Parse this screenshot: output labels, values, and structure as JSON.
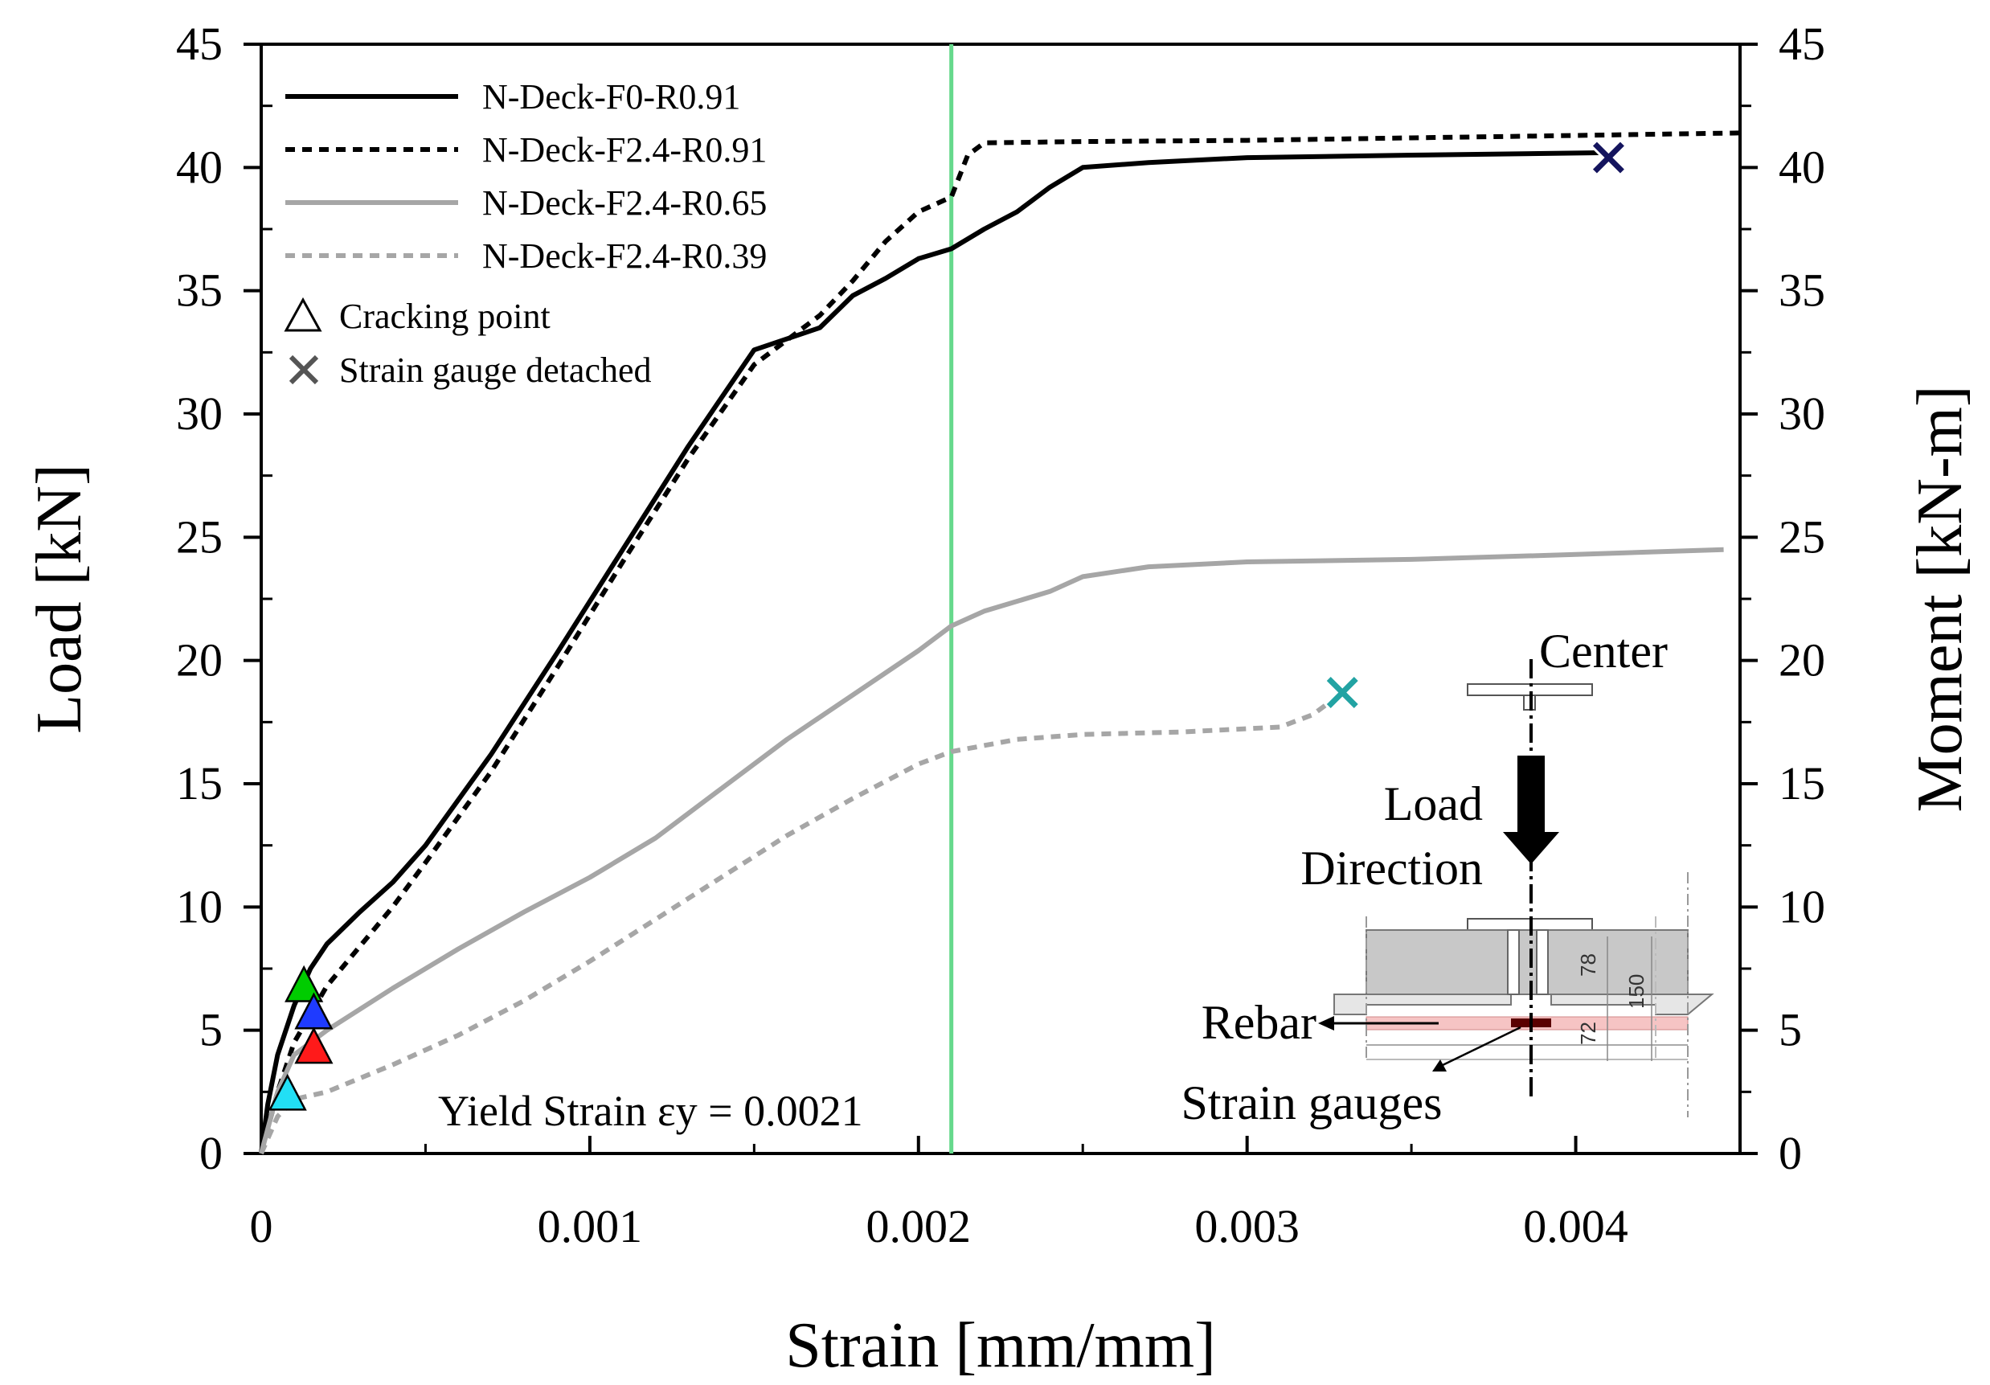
{
  "chart_data": {
    "type": "line",
    "xlabel": "Strain [mm/mm]",
    "ylabel": "Load [kN]",
    "y2label": "Moment [kN-m]",
    "xlim": [
      0,
      0.0045
    ],
    "ylim": [
      0,
      45
    ],
    "xticks": [
      0,
      0.001,
      0.002,
      0.003,
      0.004
    ],
    "xtick_labels": [
      "0",
      "0.001",
      "0.002",
      "0.003",
      "0.004"
    ],
    "yticks": [
      0,
      5,
      10,
      15,
      20,
      25,
      30,
      35,
      40,
      45
    ],
    "ytick_labels": [
      "0",
      "5",
      "10",
      "15",
      "20",
      "25",
      "30",
      "35",
      "40",
      "45"
    ],
    "y2tick_labels": [
      "0",
      "5",
      "10",
      "15",
      "20",
      "25",
      "30",
      "35",
      "40",
      "45"
    ],
    "grid": false,
    "legend_position": "top-left",
    "series": [
      {
        "name": "N-Deck-F0-R0.91",
        "color": "#000000",
        "dash": "solid",
        "x": [
          0,
          2e-05,
          5e-05,
          0.0001,
          0.00015,
          0.0002,
          0.0003,
          0.0004,
          0.0005,
          0.0007,
          0.0009,
          0.0011,
          0.0013,
          0.0015,
          0.0017,
          0.0018,
          0.0019,
          0.002,
          0.0021,
          0.0022,
          0.0023,
          0.0024,
          0.0025,
          0.0027,
          0.003,
          0.0035,
          0.0041
        ],
        "y": [
          0,
          2,
          4,
          6,
          7.5,
          8.5,
          9.8,
          11,
          12.5,
          16.2,
          20.3,
          24.5,
          28.7,
          32.6,
          33.5,
          34.8,
          35.5,
          36.3,
          36.7,
          37.5,
          38.2,
          39.2,
          40,
          40.2,
          40.4,
          40.5,
          40.6
        ]
      },
      {
        "name": "N-Deck-F2.4-R0.91",
        "color": "#000000",
        "dash": "dotted",
        "x": [
          0,
          5e-05,
          0.0001,
          0.0002,
          0.0003,
          0.0004,
          0.0005,
          0.0007,
          0.0009,
          0.0011,
          0.0013,
          0.0015,
          0.0017,
          0.0018,
          0.0019,
          0.002,
          0.0021,
          0.00215,
          0.0022,
          0.0025,
          0.003,
          0.0035,
          0.004,
          0.0045
        ],
        "y": [
          0,
          2.5,
          4.5,
          6.8,
          8.4,
          10,
          11.8,
          15.5,
          19.7,
          24,
          28.2,
          32,
          34,
          35.4,
          37,
          38.2,
          38.8,
          40.5,
          41,
          41.05,
          41.1,
          41.2,
          41.3,
          41.4
        ]
      },
      {
        "name": "N-Deck-F2.4-R0.65",
        "color": "#a6a6a6",
        "dash": "solid",
        "x": [
          0,
          5e-05,
          0.0001,
          0.0002,
          0.0004,
          0.0006,
          0.0008,
          0.001,
          0.0012,
          0.0014,
          0.0016,
          0.0018,
          0.002,
          0.0021,
          0.0022,
          0.0024,
          0.0025,
          0.0027,
          0.003,
          0.0035,
          0.004,
          0.00445
        ],
        "y": [
          0,
          2.5,
          4,
          5,
          6.7,
          8.3,
          9.8,
          11.2,
          12.8,
          14.8,
          16.8,
          18.6,
          20.4,
          21.4,
          22,
          22.8,
          23.4,
          23.8,
          24,
          24.1,
          24.3,
          24.5
        ]
      },
      {
        "name": "N-Deck-F2.4-R0.39",
        "color": "#a6a6a6",
        "dash": "dotted",
        "x": [
          0,
          5e-05,
          0.0001,
          0.0002,
          0.0004,
          0.0006,
          0.0008,
          0.001,
          0.0012,
          0.0014,
          0.0016,
          0.0018,
          0.002,
          0.0021,
          0.0023,
          0.0025,
          0.0028,
          0.0031,
          0.0032,
          0.00328
        ],
        "y": [
          0,
          1.5,
          2.2,
          2.5,
          3.6,
          4.8,
          6.2,
          7.8,
          9.5,
          11.2,
          12.9,
          14.4,
          15.8,
          16.3,
          16.8,
          17,
          17.1,
          17.3,
          17.8,
          18.6
        ]
      }
    ],
    "markers": [
      {
        "label": "Cracking point",
        "type": "triangle",
        "color": "#00cc00",
        "x": 0.00013,
        "y": 6.8
      },
      {
        "label": "Cracking point",
        "type": "triangle",
        "color": "#1f3bff",
        "x": 0.00016,
        "y": 5.7
      },
      {
        "label": "Cracking point",
        "type": "triangle",
        "color": "#ff1a1a",
        "x": 0.00016,
        "y": 4.3
      },
      {
        "label": "Cracking point",
        "type": "triangle",
        "color": "#22dff5",
        "x": 8e-05,
        "y": 2.4
      },
      {
        "label": "Strain gauge detached",
        "type": "x",
        "color": "#14145e",
        "x": 0.0041,
        "y": 40.4
      },
      {
        "label": "Strain gauge detached",
        "type": "x",
        "color": "#22a3a3",
        "x": 0.00329,
        "y": 18.7
      }
    ],
    "reference_line": {
      "x": 0.0021,
      "color": "#66d98c"
    },
    "annotation": "Yield Strain εy = 0.0021",
    "legend_symbols": [
      {
        "symbol": "triangle",
        "label": "Cracking point"
      },
      {
        "symbol": "x",
        "label": "Strain gauge detached"
      }
    ],
    "inset": {
      "center_label": "Center",
      "load_label_line1": "Load",
      "load_label_line2": "Direction",
      "rebar_label": "Rebar",
      "strain_gauges_label": "Strain gauges",
      "dim_78": "78",
      "dim_150": "150",
      "dim_72": "72"
    }
  }
}
